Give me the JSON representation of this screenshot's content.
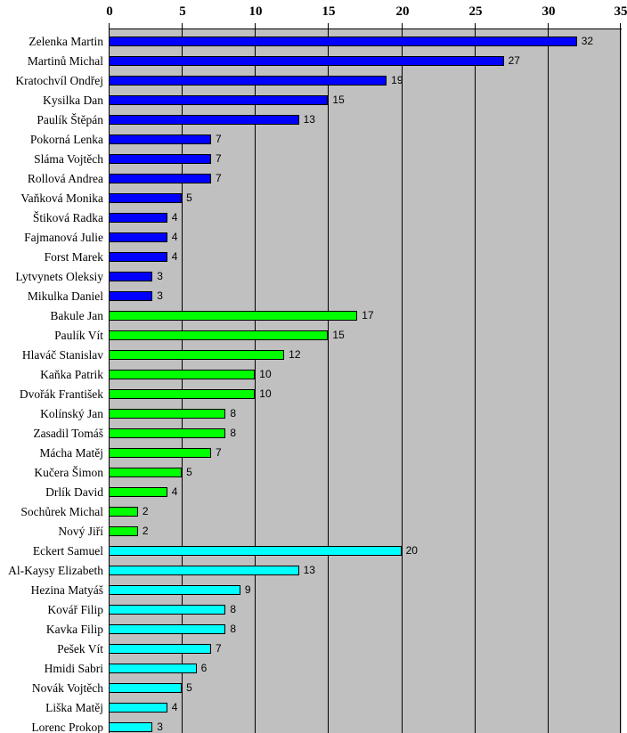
{
  "chart_data": {
    "type": "bar",
    "orientation": "horizontal",
    "title": "",
    "xlabel": "",
    "ylabel": "",
    "value_axis": {
      "position": "top",
      "min": 0,
      "max": 35,
      "ticks": [
        0,
        5,
        10,
        15,
        20,
        25,
        30,
        35
      ],
      "gridlines": true
    },
    "data_labels": true,
    "colors": {
      "plot_background": "#c0c0c0",
      "page_background": "#ffffff",
      "axis": "#000000",
      "gridline": "#000000",
      "bar_border": "#000000",
      "text": "#000000"
    },
    "groups": {
      "blue": "#0000ff",
      "green": "#00ff00",
      "cyan": "#00ffff"
    },
    "bars": [
      {
        "label": "Zelenka Martin",
        "value": 32,
        "group": "blue"
      },
      {
        "label": "Martinů Michal",
        "value": 27,
        "group": "blue"
      },
      {
        "label": "Kratochvíl Ondřej",
        "value": 19,
        "group": "blue"
      },
      {
        "label": "Kysilka Dan",
        "value": 15,
        "group": "blue"
      },
      {
        "label": "Paulík Štěpán",
        "value": 13,
        "group": "blue"
      },
      {
        "label": "Pokorná Lenka",
        "value": 7,
        "group": "blue"
      },
      {
        "label": "Sláma Vojtěch",
        "value": 7,
        "group": "blue"
      },
      {
        "label": "Rollová Andrea",
        "value": 7,
        "group": "blue"
      },
      {
        "label": "Vaňková Monika",
        "value": 5,
        "group": "blue"
      },
      {
        "label": "Štiková Radka",
        "value": 4,
        "group": "blue"
      },
      {
        "label": "Fajmanová Julie",
        "value": 4,
        "group": "blue"
      },
      {
        "label": "Forst Marek",
        "value": 4,
        "group": "blue"
      },
      {
        "label": "Lytvynets Oleksiy",
        "value": 3,
        "group": "blue"
      },
      {
        "label": "Mikulka Daniel",
        "value": 3,
        "group": "blue"
      },
      {
        "label": "Bakule Jan",
        "value": 17,
        "group": "green"
      },
      {
        "label": "Paulík Vít",
        "value": 15,
        "group": "green"
      },
      {
        "label": "Hlaváč Stanislav",
        "value": 12,
        "group": "green"
      },
      {
        "label": "Kaňka Patrik",
        "value": 10,
        "group": "green"
      },
      {
        "label": "Dvořák František",
        "value": 10,
        "group": "green"
      },
      {
        "label": "Kolínský Jan",
        "value": 8,
        "group": "green"
      },
      {
        "label": "Zasadil Tomáš",
        "value": 8,
        "group": "green"
      },
      {
        "label": "Mácha Matěj",
        "value": 7,
        "group": "green"
      },
      {
        "label": "Kučera Šimon",
        "value": 5,
        "group": "green"
      },
      {
        "label": "Drlík David",
        "value": 4,
        "group": "green"
      },
      {
        "label": "Sochůrek Michal",
        "value": 2,
        "group": "green"
      },
      {
        "label": "Nový Jiří",
        "value": 2,
        "group": "green"
      },
      {
        "label": "Eckert Samuel",
        "value": 20,
        "group": "cyan"
      },
      {
        "label": "Al-Kaysy Elizabeth",
        "value": 13,
        "group": "cyan"
      },
      {
        "label": "Hezina Matyáš",
        "value": 9,
        "group": "cyan"
      },
      {
        "label": "Kovář Filip",
        "value": 8,
        "group": "cyan"
      },
      {
        "label": "Kavka Filip",
        "value": 8,
        "group": "cyan"
      },
      {
        "label": "Pešek Vít",
        "value": 7,
        "group": "cyan"
      },
      {
        "label": "Hmidi Sabri",
        "value": 6,
        "group": "cyan"
      },
      {
        "label": "Novák Vojtěch",
        "value": 5,
        "group": "cyan"
      },
      {
        "label": "Liška Matěj",
        "value": 4,
        "group": "cyan"
      },
      {
        "label": "Lorenc Prokop",
        "value": 3,
        "group": "cyan"
      }
    ]
  }
}
